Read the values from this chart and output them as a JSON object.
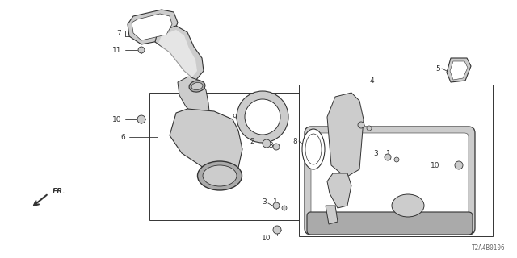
{
  "bg_color": "#ffffff",
  "line_color": "#333333",
  "label_color": "#222222",
  "fig_width": 6.4,
  "fig_height": 3.2,
  "dpi": 100,
  "diagram_code": "T2A4B0106",
  "white": "#ffffff",
  "gray1": "#cccccc",
  "gray2": "#aaaaaa",
  "gray3": "#888888"
}
